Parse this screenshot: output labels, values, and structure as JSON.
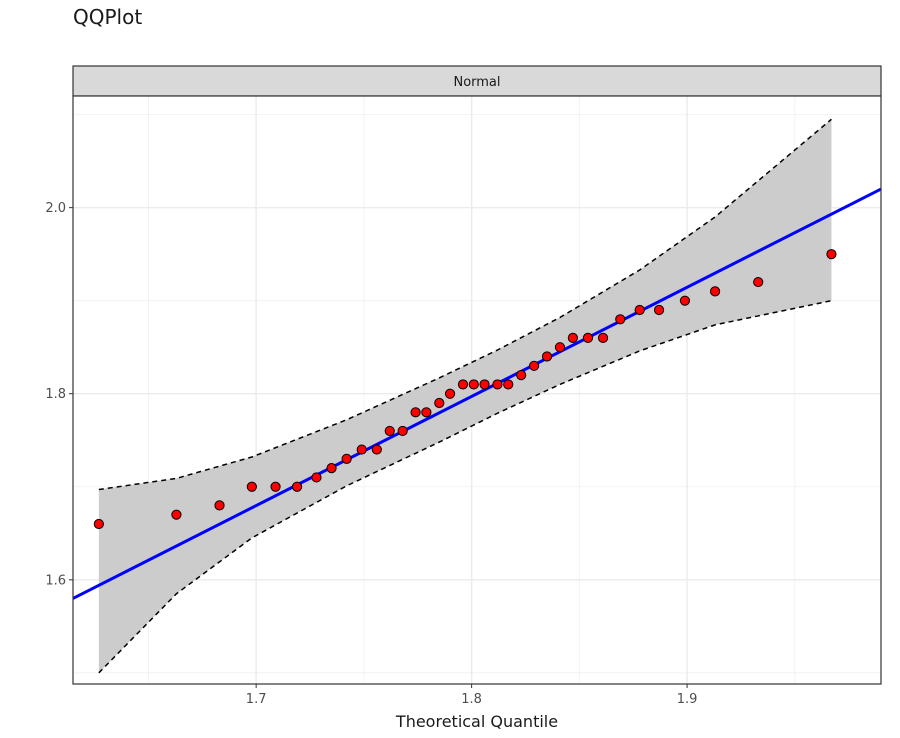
{
  "chart_data": {
    "type": "scatter",
    "title": "QQPlot",
    "facet_label": "Normal",
    "xlabel": "Theoretical Quantile",
    "ylabel": "",
    "xlim": [
      1.615,
      1.99
    ],
    "ylim": [
      1.488,
      2.12
    ],
    "x_ticks": [
      1.7,
      1.8,
      1.9
    ],
    "x_tick_labels": [
      "1.7",
      "1.8",
      "1.9"
    ],
    "y_ticks": [
      1.6,
      1.8,
      2.0
    ],
    "y_tick_labels": [
      "1.6",
      "1.8",
      "2.0"
    ],
    "grid": true,
    "colors": {
      "points_fill": "#ff0000",
      "points_stroke": "#000000",
      "reference_line": "#0000ff",
      "band_fill": "#cccccc",
      "band_border": "#000000",
      "strip_fill": "#d9d9d9"
    },
    "points": {
      "x": [
        1.627,
        1.663,
        1.683,
        1.698,
        1.709,
        1.719,
        1.728,
        1.735,
        1.742,
        1.749,
        1.756,
        1.762,
        1.768,
        1.774,
        1.779,
        1.785,
        1.79,
        1.796,
        1.801,
        1.806,
        1.812,
        1.817,
        1.823,
        1.829,
        1.835,
        1.841,
        1.847,
        1.854,
        1.861,
        1.869,
        1.878,
        1.887,
        1.899,
        1.913,
        1.933,
        1.967
      ],
      "y": [
        1.66,
        1.67,
        1.68,
        1.7,
        1.7,
        1.7,
        1.71,
        1.72,
        1.73,
        1.74,
        1.74,
        1.76,
        1.76,
        1.78,
        1.78,
        1.79,
        1.8,
        1.81,
        1.81,
        1.81,
        1.81,
        1.81,
        1.82,
        1.83,
        1.84,
        1.85,
        1.86,
        1.86,
        1.86,
        1.88,
        1.89,
        1.89,
        1.9,
        1.91,
        1.92,
        1.95
      ]
    },
    "reference_line": {
      "x": [
        1.615,
        1.99
      ],
      "y": [
        1.58,
        2.02
      ]
    },
    "confidence_band": {
      "x": [
        1.627,
        1.663,
        1.698,
        1.742,
        1.785,
        1.812,
        1.841,
        1.878,
        1.913,
        1.967
      ],
      "upper": [
        1.697,
        1.709,
        1.732,
        1.772,
        1.817,
        1.847,
        1.882,
        1.933,
        1.99,
        2.095
      ],
      "lower": [
        1.5,
        1.585,
        1.645,
        1.701,
        1.748,
        1.779,
        1.81,
        1.846,
        1.874,
        1.9
      ]
    }
  }
}
